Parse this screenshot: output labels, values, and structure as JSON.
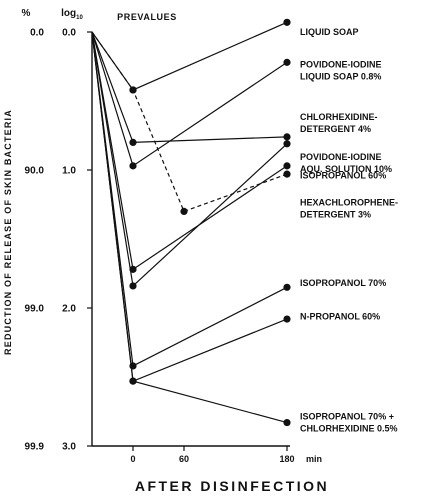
{
  "chart_data": {
    "type": "line",
    "ylabel": "REDUCTION OF RELEASE OF SKIN BACTERIA",
    "xlabel": "AFTER DISINFECTION",
    "x_unit": "min",
    "header_percent": "%",
    "header_log": "log",
    "header_log_sub": "10",
    "prevalues_label": "PREVALUES",
    "ylim": [
      0,
      3
    ],
    "y_inverted": true,
    "y_ticks_log": [
      "0.0",
      "1.0",
      "2.0",
      "3.0"
    ],
    "y_ticks_percent": [
      "0.0",
      "90.0",
      "99.0",
      "99.9"
    ],
    "x_ticks": [
      "0",
      "60",
      "180"
    ],
    "x_tick_values": [
      0,
      60,
      180
    ],
    "series": [
      {
        "name": "LIQUID SOAP",
        "style": "solid",
        "points": [
          {
            "x": "pre",
            "y": 0
          },
          {
            "x": 0,
            "y": 0.42
          },
          {
            "x": 180,
            "y": -0.07
          }
        ]
      },
      {
        "name": "POVIDONE-IODINE LIQUID SOAP 0.8%",
        "style": "solid",
        "points": [
          {
            "x": "pre",
            "y": 0
          },
          {
            "x": 0,
            "y": 0.97
          },
          {
            "x": 180,
            "y": 0.22
          }
        ]
      },
      {
        "name": "CHLORHEXIDINE-DETERGENT 4%",
        "style": "dashed",
        "points": [
          {
            "x": "pre",
            "y": 0
          },
          {
            "x": 0,
            "y": 0.42
          },
          {
            "x": 60,
            "y": 1.3
          },
          {
            "x": 180,
            "y": 1.03
          }
        ]
      },
      {
        "name": "POVIDONE-IODINE AQU. SOLUTION 10%",
        "style": "solid",
        "points": [
          {
            "x": "pre",
            "y": 0
          },
          {
            "x": 0,
            "y": 0.8
          },
          {
            "x": 180,
            "y": 0.76
          }
        ]
      },
      {
        "name": "ISOPROPANOL 60%",
        "style": "solid",
        "points": [
          {
            "x": "pre",
            "y": 0
          },
          {
            "x": 0,
            "y": 1.72
          },
          {
            "x": 180,
            "y": 0.97
          }
        ]
      },
      {
        "name": "HEXACHLOROPHENE-DETERGENT 3%",
        "style": "solid",
        "points": [
          {
            "x": "pre",
            "y": 0
          },
          {
            "x": 0,
            "y": 1.84
          },
          {
            "x": 180,
            "y": 0.81
          }
        ]
      },
      {
        "name": "ISOPROPANOL 70%",
        "style": "solid",
        "points": [
          {
            "x": "pre",
            "y": 0
          },
          {
            "x": 0,
            "y": 2.42
          },
          {
            "x": 180,
            "y": 1.85
          }
        ]
      },
      {
        "name": "N-PROPANOL 60%",
        "style": "solid",
        "points": [
          {
            "x": "pre",
            "y": 0
          },
          {
            "x": 0,
            "y": 2.53
          },
          {
            "x": 180,
            "y": 2.08
          }
        ]
      },
      {
        "name": "ISOPROPANOL 70% + CHLORHEXIDINE 0.5%",
        "style": "solid",
        "points": [
          {
            "x": "pre",
            "y": 0
          },
          {
            "x": 0,
            "y": 2.53
          },
          {
            "x": 180,
            "y": 2.83
          }
        ]
      }
    ],
    "labels": [
      {
        "lines": [
          "LIQUID SOAP"
        ],
        "y": 0.0
      },
      {
        "lines": [
          "POVIDONE-IODINE",
          "LIQUID SOAP 0.8%"
        ],
        "y": 0.28
      },
      {
        "lines": [
          "CHLORHEXIDINE-",
          "DETERGENT 4%"
        ],
        "y": 0.66
      },
      {
        "lines": [
          "POVIDONE-IODINE",
          "AQU. SOLUTION 10%"
        ],
        "y": 0.95
      },
      {
        "lines": [
          "ISOPROPANOL 60%"
        ],
        "y": 1.04
      },
      {
        "lines": [
          "HEXACHLOROPHENE-",
          "DETERGENT 3%"
        ],
        "y": 1.28
      },
      {
        "lines": [
          "ISOPROPANOL 70%"
        ],
        "y": 1.82
      },
      {
        "lines": [
          "N-PROPANOL 60%"
        ],
        "y": 2.06
      },
      {
        "lines": [
          "ISOPROPANOL 70% +",
          "CHLORHEXIDINE 0.5%"
        ],
        "y": 2.83
      }
    ],
    "grid": false,
    "legend": "direct labels at right"
  }
}
